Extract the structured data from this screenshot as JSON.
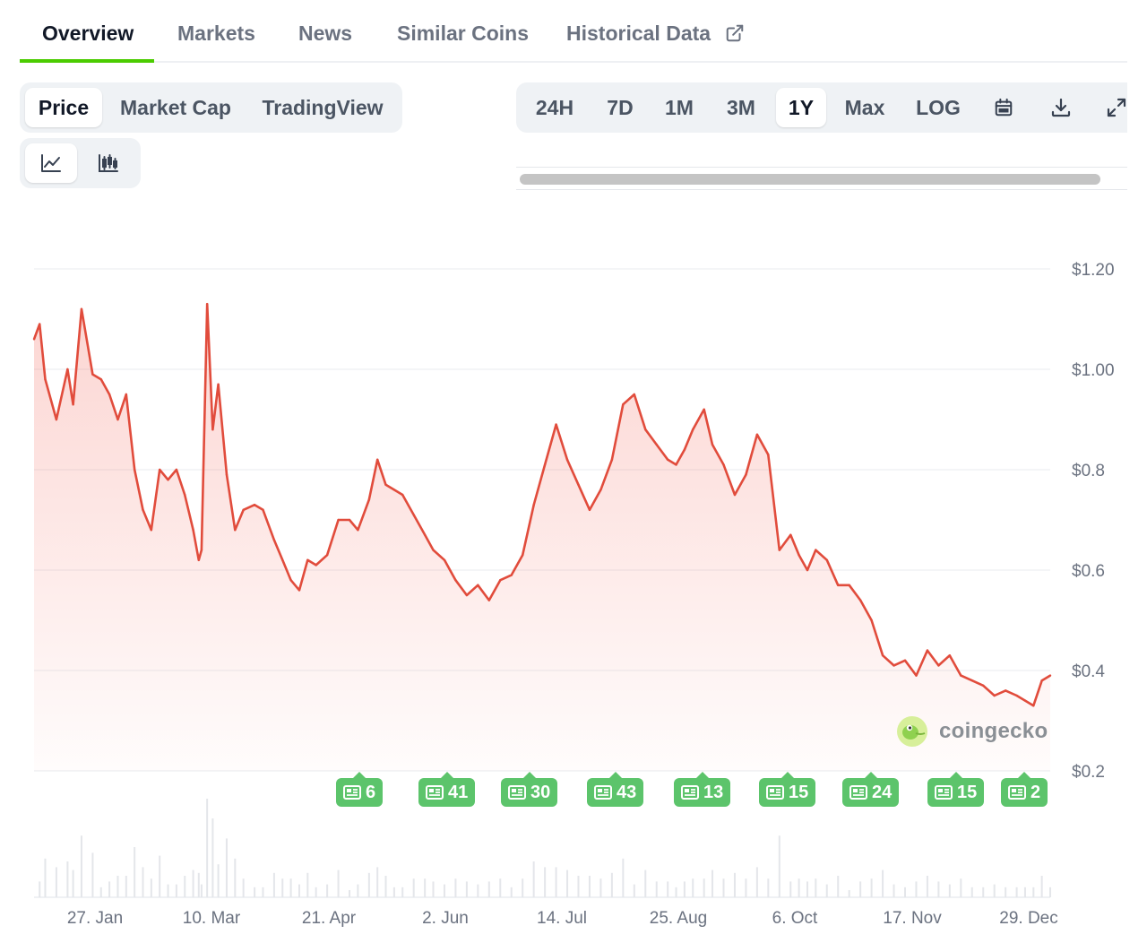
{
  "tabs": [
    {
      "label": "Overview",
      "active": true
    },
    {
      "label": "Markets"
    },
    {
      "label": "News"
    },
    {
      "label": "Similar Coins"
    },
    {
      "label": "Historical Data",
      "icon": "external-link-icon"
    }
  ],
  "chart_type_pills": [
    {
      "label": "Price",
      "active": true
    },
    {
      "label": "Market Cap"
    },
    {
      "label": "TradingView"
    }
  ],
  "view_toggles": [
    {
      "icon": "line-chart-icon",
      "active": true
    },
    {
      "icon": "candlestick-chart-icon"
    }
  ],
  "range_pills": [
    {
      "label": "24H"
    },
    {
      "label": "7D"
    },
    {
      "label": "1M"
    },
    {
      "label": "3M"
    },
    {
      "label": "1Y",
      "active": true
    },
    {
      "label": "Max"
    },
    {
      "label": "LOG"
    }
  ],
  "range_icons": [
    "calendar-icon",
    "download-icon",
    "expand-icon"
  ],
  "watermark": {
    "text": "coingecko",
    "icon": "gecko-logo-icon"
  },
  "news_badges": [
    "6",
    "41",
    "30",
    "43",
    "13",
    "15",
    "24",
    "15",
    "2"
  ],
  "colors": {
    "line": "#e14c3c",
    "accent": "#4bcc00",
    "news": "#5cc46b"
  },
  "chart_data": {
    "type": "line",
    "y_tick_labels": [
      "$1.20",
      "$1.00",
      "$0.8",
      "$0.6",
      "$0.4",
      "$0.2"
    ],
    "y_ticks": [
      1.2,
      1.0,
      0.8,
      0.6,
      0.4,
      0.2
    ],
    "ylim": [
      0.2,
      1.2
    ],
    "x_tick_labels": [
      "27. Jan",
      "10. Mar",
      "21. Apr",
      "2. Jun",
      "14. Jul",
      "25. Aug",
      "6. Oct",
      "17. Nov",
      "29. Dec"
    ],
    "x": [
      "2024-01-06",
      "2024-01-08",
      "2024-01-10",
      "2024-01-14",
      "2024-01-18",
      "2024-01-20",
      "2024-01-23",
      "2024-01-27",
      "2024-01-30",
      "2024-02-02",
      "2024-02-05",
      "2024-02-08",
      "2024-02-11",
      "2024-02-14",
      "2024-02-17",
      "2024-02-20",
      "2024-02-23",
      "2024-02-26",
      "2024-02-29",
      "2024-03-03",
      "2024-03-05",
      "2024-03-06",
      "2024-03-08",
      "2024-03-10",
      "2024-03-12",
      "2024-03-15",
      "2024-03-18",
      "2024-03-21",
      "2024-03-25",
      "2024-03-28",
      "2024-04-01",
      "2024-04-04",
      "2024-04-07",
      "2024-04-10",
      "2024-04-13",
      "2024-04-16",
      "2024-04-20",
      "2024-04-24",
      "2024-04-28",
      "2024-05-01",
      "2024-05-05",
      "2024-05-08",
      "2024-05-11",
      "2024-05-14",
      "2024-05-17",
      "2024-05-21",
      "2024-05-25",
      "2024-05-28",
      "2024-06-01",
      "2024-06-05",
      "2024-06-09",
      "2024-06-13",
      "2024-06-17",
      "2024-06-21",
      "2024-06-25",
      "2024-06-29",
      "2024-07-03",
      "2024-07-07",
      "2024-07-11",
      "2024-07-15",
      "2024-07-19",
      "2024-07-23",
      "2024-07-27",
      "2024-07-31",
      "2024-08-04",
      "2024-08-08",
      "2024-08-12",
      "2024-08-16",
      "2024-08-20",
      "2024-08-23",
      "2024-08-26",
      "2024-08-29",
      "2024-09-02",
      "2024-09-05",
      "2024-09-09",
      "2024-09-13",
      "2024-09-17",
      "2024-09-21",
      "2024-09-25",
      "2024-09-29",
      "2024-10-03",
      "2024-10-06",
      "2024-10-09",
      "2024-10-12",
      "2024-10-16",
      "2024-10-20",
      "2024-10-24",
      "2024-10-28",
      "2024-11-01",
      "2024-11-05",
      "2024-11-09",
      "2024-11-13",
      "2024-11-17",
      "2024-11-21",
      "2024-11-25",
      "2024-11-29",
      "2024-12-03",
      "2024-12-07",
      "2024-12-11",
      "2024-12-15",
      "2024-12-19",
      "2024-12-23",
      "2024-12-26",
      "2024-12-29",
      "2025-01-01",
      "2025-01-04"
    ],
    "y": [
      1.06,
      1.09,
      0.98,
      0.9,
      1.0,
      0.93,
      1.12,
      0.99,
      0.98,
      0.95,
      0.9,
      0.95,
      0.8,
      0.72,
      0.68,
      0.8,
      0.78,
      0.8,
      0.75,
      0.68,
      0.62,
      0.64,
      1.13,
      0.88,
      0.97,
      0.79,
      0.68,
      0.72,
      0.73,
      0.72,
      0.66,
      0.62,
      0.58,
      0.56,
      0.62,
      0.61,
      0.63,
      0.7,
      0.7,
      0.68,
      0.74,
      0.82,
      0.77,
      0.76,
      0.75,
      0.71,
      0.67,
      0.64,
      0.62,
      0.58,
      0.55,
      0.57,
      0.54,
      0.58,
      0.59,
      0.63,
      0.73,
      0.81,
      0.89,
      0.82,
      0.77,
      0.72,
      0.76,
      0.82,
      0.93,
      0.95,
      0.88,
      0.85,
      0.82,
      0.81,
      0.84,
      0.88,
      0.92,
      0.85,
      0.81,
      0.75,
      0.79,
      0.87,
      0.83,
      0.64,
      0.67,
      0.63,
      0.6,
      0.64,
      0.62,
      0.57,
      0.57,
      0.54,
      0.5,
      0.43,
      0.41,
      0.42,
      0.39,
      0.44,
      0.41,
      0.43,
      0.39,
      0.38,
      0.37,
      0.35,
      0.36,
      0.35,
      0.34,
      0.33,
      0.38,
      0.39
    ],
    "volume_note": "",
    "grid": true
  }
}
